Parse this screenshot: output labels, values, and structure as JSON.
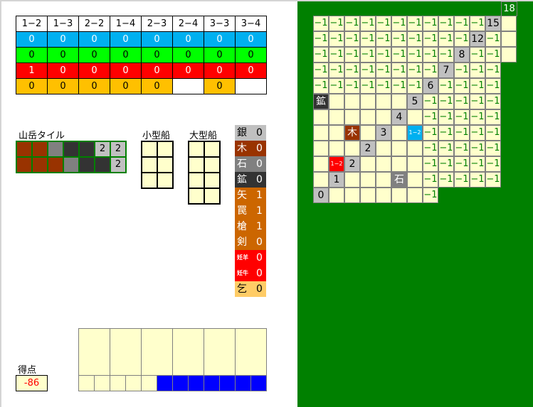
{
  "dice_table": {
    "headers": [
      "1−2",
      "1−3",
      "2−2",
      "1−4",
      "2−3",
      "2−4",
      "3−3",
      "3−4"
    ],
    "rows": [
      {
        "color": "#00b0f0",
        "text_color": "#fff",
        "values": [
          "0",
          "0",
          "0",
          "0",
          "0",
          "0",
          "0",
          "0"
        ]
      },
      {
        "color": "#00ff00",
        "text_color": "#000",
        "values": [
          "0",
          "0",
          "0",
          "0",
          "0",
          "0",
          "0",
          "0"
        ]
      },
      {
        "color": "#ff0000",
        "text_color": "#fff",
        "values": [
          "1",
          "0",
          "0",
          "0",
          "0",
          "0",
          "0",
          "0"
        ]
      },
      {
        "color": "#ffc000",
        "text_color": "#000",
        "values": [
          "0",
          "0",
          "0",
          "0",
          "0",
          "",
          "0",
          ""
        ]
      }
    ]
  },
  "mountain": {
    "title": "山岳タイル",
    "rows": [
      [
        {
          "c": "#993300"
        },
        {
          "c": "#993300"
        },
        {
          "c": "#808080"
        },
        {
          "c": "#333333"
        },
        {
          "c": "#333333"
        },
        {
          "c": "#c0c0c0",
          "t": "2"
        },
        {
          "c": "#c0c0c0",
          "t": "2"
        }
      ],
      [
        {
          "c": "#993300"
        },
        {
          "c": "#993300"
        },
        {
          "c": "#993300"
        },
        {
          "c": "#808080"
        },
        {
          "c": "#333333"
        },
        {
          "c": "#333333"
        },
        {
          "c": "#c0c0c0",
          "t": "2"
        }
      ]
    ]
  },
  "small_ship": {
    "title": "小型船"
  },
  "large_ship": {
    "title": "大型船"
  },
  "resources": [
    {
      "label": "銀",
      "value": "0",
      "bg": "#c0c0c0",
      "fg": "#000"
    },
    {
      "label": "木",
      "value": "0",
      "bg": "#993300",
      "fg": "#fff"
    },
    {
      "label": "石",
      "value": "0",
      "bg": "#808080",
      "fg": "#fff"
    },
    {
      "label": "鉱",
      "value": "0",
      "bg": "#333333",
      "fg": "#fff"
    },
    {
      "label": "矢",
      "value": "1",
      "bg": "#cc6600",
      "fg": "#fff"
    },
    {
      "label": "罠",
      "value": "1",
      "bg": "#cc6600",
      "fg": "#fff"
    },
    {
      "label": "槍",
      "value": "1",
      "bg": "#cc6600",
      "fg": "#fff"
    },
    {
      "label": "剣",
      "value": "0",
      "bg": "#cc6600",
      "fg": "#fff"
    },
    {
      "label": "妊羊",
      "value": "0",
      "bg": "#ff0000",
      "fg": "#fff",
      "small": true
    },
    {
      "label": "妊牛",
      "value": "0",
      "bg": "#ff0000",
      "fg": "#fff",
      "small": true
    },
    {
      "label": "乞",
      "value": "0",
      "bg": "#ffcc66",
      "fg": "#000"
    }
  ],
  "score": {
    "label": "得点",
    "value": "-86"
  },
  "storage": {
    "filled_lower": 7,
    "lower_total": 12,
    "fill_color": "#0000ff"
  },
  "board": {
    "corner_value": "18",
    "rows": [
      "-1,-1,-1,-1,-1,-1,-1,-1,-1,-1,-1,g15,.",
      "-1,-1,-1,-1,-1,-1,-1,-1,-1,-1,g12,-1,.",
      "-1,-1,-1,-1,-1,-1,-1,-1,-1,g8,-1,-1,.",
      "-1,-1,-1,-1,-1,-1,-1,-1,g7,-1,-1,-1",
      "-1,-1,-1,-1,-1,-1,-1,g6,-1,-1,-1,-1",
      "k鉱,.,.,.,.,.,g5,-1,-1,-1,-1,-1",
      ".,.,.,.,.,g4,.,-1,-1,-1,-1,-1",
      ".,.,w木,.,g3,.,b1-2,-1,-1,-1,-1,-1",
      ".,.,.,g2,.,.,.,-1,-1,-1,-1,-1",
      ".,r1-2,g2,.,.,.,.,-1,-1,-1,-1,-1",
      ".,g1,.,.,.,s石,.,-1,-1,-1,-1,-1",
      "g0,.,.,.,.,.,.,-1"
    ]
  }
}
